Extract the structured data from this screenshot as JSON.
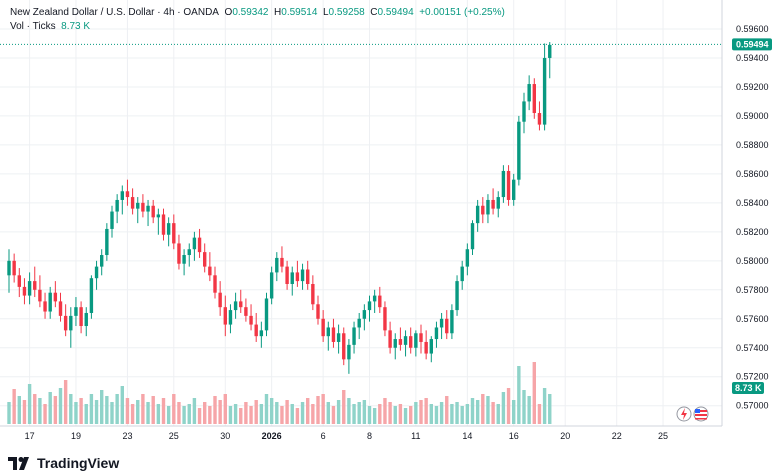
{
  "header": {
    "symbol": "New Zealand Dollar / U.S. Dollar · 4h · OANDA",
    "o_label": "O",
    "o": "0.59342",
    "h_label": "H",
    "h": "0.59514",
    "l_label": "L",
    "l": "0.59258",
    "c_label": "C",
    "c": "0.59494",
    "change": "+0.00151 (+0.25%)",
    "vol_label": "Vol · Ticks",
    "vol": "8.73 K"
  },
  "brand": {
    "name": "TradingView",
    "logo": "tradingview-logo"
  },
  "colors": {
    "up": "#089981",
    "down": "#f23645",
    "vol_up": "#8fd3c9",
    "vol_down": "#f6a5a8",
    "grid": "#eef0f3",
    "price_line": "#089981"
  },
  "chart_data": {
    "type": "candlestick",
    "price_axis": {
      "ylim": [
        0.5686,
        0.598
      ],
      "ticks": [
        "0.59600",
        "0.59400",
        "0.59200",
        "0.59000",
        "0.58800",
        "0.58600",
        "0.58400",
        "0.58200",
        "0.58000",
        "0.57800",
        "0.57600",
        "0.57400",
        "0.57200",
        "0.57000"
      ],
      "tick_values": [
        0.596,
        0.594,
        0.592,
        0.59,
        0.588,
        0.586,
        0.584,
        0.582,
        0.58,
        0.578,
        0.576,
        0.574,
        0.572,
        0.57
      ]
    },
    "last_price": {
      "label": "0.59494",
      "value": 0.59494
    },
    "volume_label": "8.73 K",
    "x_ticks": [
      "17",
      "19",
      "23",
      "25",
      "30",
      "2026",
      "6",
      "8",
      "11",
      "14",
      "16",
      "20",
      "22",
      "25"
    ],
    "x_tick_bars": [
      4,
      13,
      23,
      32,
      42,
      51,
      61,
      70,
      79,
      89,
      98,
      108,
      118,
      127
    ],
    "candles": [
      [
        0.579,
        0.5808,
        0.5778,
        0.58
      ],
      [
        0.58,
        0.5805,
        0.5785,
        0.579
      ],
      [
        0.579,
        0.5795,
        0.5775,
        0.5782
      ],
      [
        0.5782,
        0.5788,
        0.577,
        0.5776
      ],
      [
        0.5776,
        0.5792,
        0.577,
        0.5786
      ],
      [
        0.5786,
        0.5796,
        0.5775,
        0.578
      ],
      [
        0.578,
        0.579,
        0.5768,
        0.5772
      ],
      [
        0.5772,
        0.5778,
        0.576,
        0.5765
      ],
      [
        0.5765,
        0.5782,
        0.576,
        0.5778
      ],
      [
        0.5778,
        0.5786,
        0.5768,
        0.5772
      ],
      [
        0.5772,
        0.5778,
        0.5758,
        0.5762
      ],
      [
        0.5762,
        0.577,
        0.5748,
        0.5752
      ],
      [
        0.5752,
        0.5768,
        0.574,
        0.5762
      ],
      [
        0.5762,
        0.5775,
        0.5755,
        0.5768
      ],
      [
        0.5768,
        0.5772,
        0.575,
        0.5755
      ],
      [
        0.5755,
        0.5768,
        0.5748,
        0.5764
      ],
      [
        0.5764,
        0.579,
        0.576,
        0.5788
      ],
      [
        0.5788,
        0.58,
        0.578,
        0.5796
      ],
      [
        0.5796,
        0.5808,
        0.579,
        0.5804
      ],
      [
        0.5804,
        0.5826,
        0.58,
        0.5822
      ],
      [
        0.5822,
        0.5838,
        0.5816,
        0.5834
      ],
      [
        0.5834,
        0.5846,
        0.5826,
        0.5842
      ],
      [
        0.5842,
        0.5852,
        0.5832,
        0.5848
      ],
      [
        0.5848,
        0.5856,
        0.5838,
        0.5844
      ],
      [
        0.5844,
        0.585,
        0.5832,
        0.5836
      ],
      [
        0.5836,
        0.5844,
        0.5826,
        0.584
      ],
      [
        0.584,
        0.5846,
        0.583,
        0.5834
      ],
      [
        0.5834,
        0.5842,
        0.5824,
        0.5838
      ],
      [
        0.5838,
        0.5842,
        0.5826,
        0.583
      ],
      [
        0.583,
        0.5836,
        0.5818,
        0.5832
      ],
      [
        0.5832,
        0.5836,
        0.5814,
        0.5818
      ],
      [
        0.5818,
        0.583,
        0.581,
        0.5826
      ],
      [
        0.5826,
        0.5832,
        0.5808,
        0.5812
      ],
      [
        0.5812,
        0.5818,
        0.5794,
        0.5798
      ],
      [
        0.5798,
        0.5808,
        0.579,
        0.5804
      ],
      [
        0.5804,
        0.5812,
        0.5796,
        0.5808
      ],
      [
        0.5808,
        0.582,
        0.58,
        0.5816
      ],
      [
        0.5816,
        0.5822,
        0.5802,
        0.5806
      ],
      [
        0.5806,
        0.5812,
        0.5792,
        0.5796
      ],
      [
        0.5796,
        0.5806,
        0.5786,
        0.579
      ],
      [
        0.579,
        0.5796,
        0.5774,
        0.5778
      ],
      [
        0.5778,
        0.5786,
        0.5762,
        0.5768
      ],
      [
        0.5768,
        0.5776,
        0.5748,
        0.5756
      ],
      [
        0.5756,
        0.577,
        0.575,
        0.5766
      ],
      [
        0.5766,
        0.5778,
        0.576,
        0.5772
      ],
      [
        0.5772,
        0.578,
        0.5764,
        0.5768
      ],
      [
        0.5768,
        0.5774,
        0.5758,
        0.5762
      ],
      [
        0.5762,
        0.577,
        0.5752,
        0.5756
      ],
      [
        0.5756,
        0.5764,
        0.5744,
        0.5748
      ],
      [
        0.5748,
        0.5758,
        0.574,
        0.5752
      ],
      [
        0.5752,
        0.5778,
        0.5748,
        0.5774
      ],
      [
        0.5774,
        0.5796,
        0.577,
        0.5792
      ],
      [
        0.5792,
        0.5806,
        0.5786,
        0.5802
      ],
      [
        0.5802,
        0.581,
        0.5792,
        0.5796
      ],
      [
        0.5796,
        0.58,
        0.578,
        0.5784
      ],
      [
        0.5784,
        0.5796,
        0.5776,
        0.5792
      ],
      [
        0.5792,
        0.58,
        0.5782,
        0.5786
      ],
      [
        0.5786,
        0.5798,
        0.578,
        0.5794
      ],
      [
        0.5794,
        0.58,
        0.578,
        0.5784
      ],
      [
        0.5784,
        0.579,
        0.5766,
        0.577
      ],
      [
        0.577,
        0.5776,
        0.5756,
        0.576
      ],
      [
        0.576,
        0.5766,
        0.5744,
        0.5748
      ],
      [
        0.5748,
        0.5758,
        0.5738,
        0.5754
      ],
      [
        0.5754,
        0.576,
        0.574,
        0.5744
      ],
      [
        0.5744,
        0.5756,
        0.5736,
        0.575
      ],
      [
        0.575,
        0.5754,
        0.5728,
        0.5732
      ],
      [
        0.5732,
        0.5746,
        0.5722,
        0.5742
      ],
      [
        0.5742,
        0.5758,
        0.5736,
        0.5754
      ],
      [
        0.5754,
        0.5764,
        0.5746,
        0.576
      ],
      [
        0.576,
        0.577,
        0.5752,
        0.5766
      ],
      [
        0.5766,
        0.5776,
        0.5758,
        0.5772
      ],
      [
        0.5772,
        0.578,
        0.5764,
        0.5776
      ],
      [
        0.5776,
        0.5782,
        0.5764,
        0.5768
      ],
      [
        0.5768,
        0.5772,
        0.5748,
        0.5752
      ],
      [
        0.5752,
        0.5758,
        0.5736,
        0.574
      ],
      [
        0.574,
        0.575,
        0.5732,
        0.5746
      ],
      [
        0.5746,
        0.5754,
        0.5738,
        0.5742
      ],
      [
        0.5742,
        0.5752,
        0.5734,
        0.5748
      ],
      [
        0.5748,
        0.5754,
        0.5736,
        0.574
      ],
      [
        0.574,
        0.5752,
        0.5734,
        0.575
      ],
      [
        0.575,
        0.5756,
        0.5736,
        0.5744
      ],
      [
        0.5744,
        0.5752,
        0.5732,
        0.5736
      ],
      [
        0.5736,
        0.5748,
        0.573,
        0.5746
      ],
      [
        0.5746,
        0.5758,
        0.574,
        0.5754
      ],
      [
        0.5754,
        0.5764,
        0.5746,
        0.576
      ],
      [
        0.576,
        0.5766,
        0.5746,
        0.575
      ],
      [
        0.575,
        0.577,
        0.5746,
        0.5766
      ],
      [
        0.5766,
        0.579,
        0.5762,
        0.5786
      ],
      [
        0.5786,
        0.58,
        0.578,
        0.5796
      ],
      [
        0.5796,
        0.5812,
        0.579,
        0.5808
      ],
      [
        0.5808,
        0.5828,
        0.5804,
        0.5826
      ],
      [
        0.5826,
        0.5842,
        0.582,
        0.5838
      ],
      [
        0.5838,
        0.5844,
        0.5826,
        0.5832
      ],
      [
        0.5832,
        0.5846,
        0.5826,
        0.5842
      ],
      [
        0.5842,
        0.585,
        0.5832,
        0.5836
      ],
      [
        0.5836,
        0.5848,
        0.583,
        0.5844
      ],
      [
        0.5844,
        0.5866,
        0.584,
        0.5862
      ],
      [
        0.5862,
        0.5866,
        0.5838,
        0.5842
      ],
      [
        0.5842,
        0.586,
        0.5838,
        0.5856
      ],
      [
        0.5856,
        0.59,
        0.5852,
        0.5896
      ],
      [
        0.5896,
        0.5916,
        0.5888,
        0.591
      ],
      [
        0.591,
        0.5928,
        0.5904,
        0.5922
      ],
      [
        0.5922,
        0.5926,
        0.5898,
        0.5902
      ],
      [
        0.5902,
        0.591,
        0.589,
        0.5894
      ],
      [
        0.5894,
        0.595,
        0.589,
        0.594
      ],
      [
        0.594,
        0.5951,
        0.5926,
        0.5949
      ]
    ],
    "volume": [
      [
        22,
        1
      ],
      [
        35,
        0
      ],
      [
        28,
        1
      ],
      [
        24,
        0
      ],
      [
        40,
        1
      ],
      [
        30,
        0
      ],
      [
        26,
        1
      ],
      [
        20,
        0
      ],
      [
        32,
        1
      ],
      [
        28,
        0
      ],
      [
        36,
        1
      ],
      [
        44,
        0
      ],
      [
        30,
        1
      ],
      [
        22,
        1
      ],
      [
        26,
        0
      ],
      [
        20,
        1
      ],
      [
        30,
        1
      ],
      [
        24,
        1
      ],
      [
        34,
        1
      ],
      [
        28,
        1
      ],
      [
        22,
        1
      ],
      [
        30,
        1
      ],
      [
        38,
        1
      ],
      [
        26,
        0
      ],
      [
        20,
        0
      ],
      [
        24,
        1
      ],
      [
        30,
        0
      ],
      [
        22,
        1
      ],
      [
        28,
        0
      ],
      [
        20,
        1
      ],
      [
        26,
        0
      ],
      [
        18,
        1
      ],
      [
        30,
        0
      ],
      [
        22,
        0
      ],
      [
        18,
        1
      ],
      [
        20,
        1
      ],
      [
        26,
        1
      ],
      [
        16,
        0
      ],
      [
        22,
        0
      ],
      [
        18,
        0
      ],
      [
        28,
        0
      ],
      [
        24,
        0
      ],
      [
        30,
        0
      ],
      [
        18,
        1
      ],
      [
        20,
        1
      ],
      [
        16,
        0
      ],
      [
        22,
        0
      ],
      [
        18,
        0
      ],
      [
        24,
        0
      ],
      [
        20,
        1
      ],
      [
        30,
        1
      ],
      [
        26,
        1
      ],
      [
        22,
        1
      ],
      [
        18,
        0
      ],
      [
        24,
        0
      ],
      [
        20,
        1
      ],
      [
        16,
        0
      ],
      [
        22,
        1
      ],
      [
        26,
        0
      ],
      [
        20,
        0
      ],
      [
        28,
        0
      ],
      [
        30,
        0
      ],
      [
        22,
        1
      ],
      [
        18,
        0
      ],
      [
        24,
        1
      ],
      [
        34,
        0
      ],
      [
        26,
        1
      ],
      [
        20,
        1
      ],
      [
        22,
        1
      ],
      [
        24,
        1
      ],
      [
        18,
        1
      ],
      [
        16,
        1
      ],
      [
        20,
        0
      ],
      [
        26,
        0
      ],
      [
        22,
        0
      ],
      [
        18,
        1
      ],
      [
        20,
        0
      ],
      [
        16,
        1
      ],
      [
        18,
        0
      ],
      [
        22,
        1
      ],
      [
        24,
        0
      ],
      [
        26,
        0
      ],
      [
        20,
        1
      ],
      [
        18,
        1
      ],
      [
        22,
        1
      ],
      [
        28,
        0
      ],
      [
        20,
        1
      ],
      [
        22,
        1
      ],
      [
        18,
        1
      ],
      [
        20,
        1
      ],
      [
        26,
        1
      ],
      [
        24,
        1
      ],
      [
        30,
        0
      ],
      [
        28,
        1
      ],
      [
        22,
        0
      ],
      [
        20,
        1
      ],
      [
        32,
        1
      ],
      [
        36,
        0
      ],
      [
        24,
        1
      ],
      [
        58,
        1
      ],
      [
        34,
        1
      ],
      [
        28,
        1
      ],
      [
        62,
        0
      ],
      [
        20,
        0
      ],
      [
        36,
        1
      ],
      [
        30,
        1
      ]
    ]
  }
}
